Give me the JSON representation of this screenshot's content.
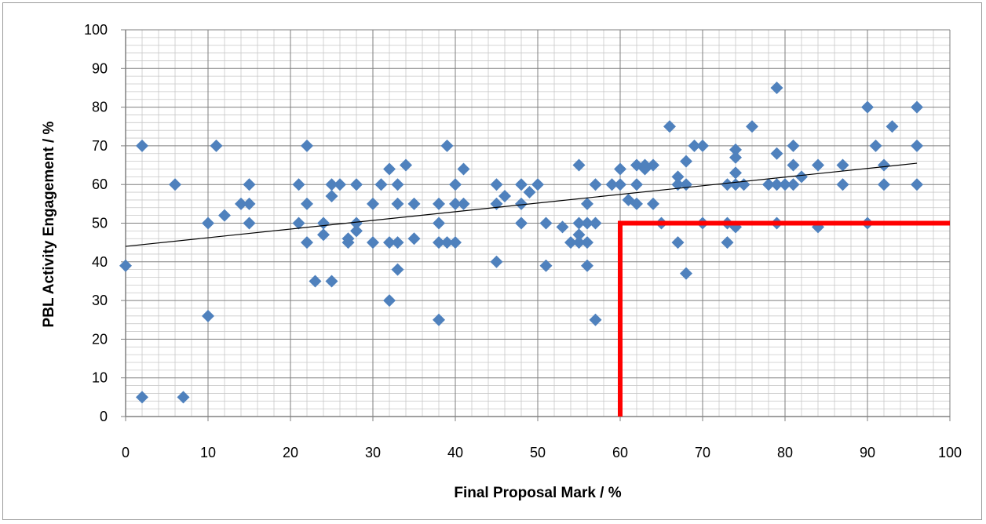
{
  "chart_data": {
    "type": "scatter",
    "title": "",
    "xlabel": "Final Proposal Mark / %",
    "ylabel": "PBL Activity Engagement / %",
    "xlim": [
      0,
      100
    ],
    "ylim": [
      0,
      100
    ],
    "x_major_ticks": [
      "0",
      "10",
      "20",
      "30",
      "40",
      "50",
      "60",
      "70",
      "80",
      "90",
      "100"
    ],
    "y_major_ticks": [
      "0",
      "10",
      "20",
      "30",
      "40",
      "50",
      "60",
      "70",
      "80",
      "90",
      "100"
    ],
    "grid": "major and minor",
    "legend": "none",
    "marker": "diamond",
    "marker_color": "#4f81bd",
    "trendline": {
      "type": "linear",
      "start": [
        0,
        44
      ],
      "end": [
        96,
        65.5
      ],
      "color": "#000000"
    },
    "threshold_lines": {
      "color": "#ff0000",
      "vertical_x": 60,
      "vertical_y_range": [
        0,
        50
      ],
      "horizontal_y": 50,
      "horizontal_x_range": [
        60,
        100
      ]
    },
    "points": [
      [
        0,
        39
      ],
      [
        2,
        70
      ],
      [
        2,
        5
      ],
      [
        6,
        60
      ],
      [
        7,
        5
      ],
      [
        10,
        50
      ],
      [
        10,
        26
      ],
      [
        11,
        70
      ],
      [
        12,
        52
      ],
      [
        14,
        55
      ],
      [
        15,
        60
      ],
      [
        15,
        55
      ],
      [
        15,
        50
      ],
      [
        21,
        60
      ],
      [
        21,
        50
      ],
      [
        22,
        70
      ],
      [
        22,
        55
      ],
      [
        22,
        45
      ],
      [
        23,
        35
      ],
      [
        24,
        50
      ],
      [
        24,
        47
      ],
      [
        25,
        60
      ],
      [
        25,
        57
      ],
      [
        25,
        35
      ],
      [
        26,
        60
      ],
      [
        27,
        46
      ],
      [
        27,
        45
      ],
      [
        28,
        60
      ],
      [
        28,
        50
      ],
      [
        28,
        48
      ],
      [
        30,
        55
      ],
      [
        30,
        45
      ],
      [
        31,
        60
      ],
      [
        32,
        64
      ],
      [
        32,
        45
      ],
      [
        32,
        30
      ],
      [
        33,
        60
      ],
      [
        33,
        55
      ],
      [
        33,
        45
      ],
      [
        33,
        38
      ],
      [
        34,
        65
      ],
      [
        35,
        55
      ],
      [
        35,
        46
      ],
      [
        38,
        55
      ],
      [
        38,
        50
      ],
      [
        38,
        45
      ],
      [
        38,
        25
      ],
      [
        39,
        70
      ],
      [
        39,
        45
      ],
      [
        40,
        60
      ],
      [
        40,
        55
      ],
      [
        40,
        45
      ],
      [
        41,
        64
      ],
      [
        41,
        55
      ],
      [
        45,
        60
      ],
      [
        45,
        55
      ],
      [
        45,
        40
      ],
      [
        46,
        57
      ],
      [
        48,
        60
      ],
      [
        48,
        55
      ],
      [
        48,
        50
      ],
      [
        49,
        58
      ],
      [
        50,
        60
      ],
      [
        51,
        50
      ],
      [
        51,
        39
      ],
      [
        53,
        49
      ],
      [
        54,
        45
      ],
      [
        55,
        65
      ],
      [
        55,
        50
      ],
      [
        55,
        47
      ],
      [
        55,
        45
      ],
      [
        56,
        55
      ],
      [
        56,
        50
      ],
      [
        56,
        45
      ],
      [
        56,
        39
      ],
      [
        57,
        60
      ],
      [
        57,
        50
      ],
      [
        57,
        25
      ],
      [
        59,
        60
      ],
      [
        60,
        64
      ],
      [
        60,
        60
      ],
      [
        61,
        56
      ],
      [
        62,
        65
      ],
      [
        62,
        60
      ],
      [
        62,
        55
      ],
      [
        63,
        65
      ],
      [
        63,
        64
      ],
      [
        64,
        65
      ],
      [
        64,
        55
      ],
      [
        65,
        50
      ],
      [
        66,
        75
      ],
      [
        67,
        62
      ],
      [
        67,
        60
      ],
      [
        67,
        45
      ],
      [
        68,
        66
      ],
      [
        68,
        60
      ],
      [
        68,
        37
      ],
      [
        69,
        70
      ],
      [
        70,
        70
      ],
      [
        70,
        50
      ],
      [
        73,
        60
      ],
      [
        73,
        50
      ],
      [
        73,
        45
      ],
      [
        74,
        69
      ],
      [
        74,
        67
      ],
      [
        74,
        63
      ],
      [
        74,
        60
      ],
      [
        74,
        49
      ],
      [
        75,
        60
      ],
      [
        76,
        75
      ],
      [
        78,
        60
      ],
      [
        79,
        85
      ],
      [
        79,
        68
      ],
      [
        79,
        60
      ],
      [
        79,
        50
      ],
      [
        80,
        60
      ],
      [
        81,
        70
      ],
      [
        81,
        65
      ],
      [
        81,
        60
      ],
      [
        82,
        62
      ],
      [
        84,
        65
      ],
      [
        84,
        49
      ],
      [
        87,
        65
      ],
      [
        87,
        60
      ],
      [
        90,
        80
      ],
      [
        90,
        50
      ],
      [
        91,
        70
      ],
      [
        92,
        65
      ],
      [
        92,
        60
      ],
      [
        93,
        75
      ],
      [
        96,
        80
      ],
      [
        96,
        70
      ],
      [
        96,
        60
      ]
    ]
  }
}
